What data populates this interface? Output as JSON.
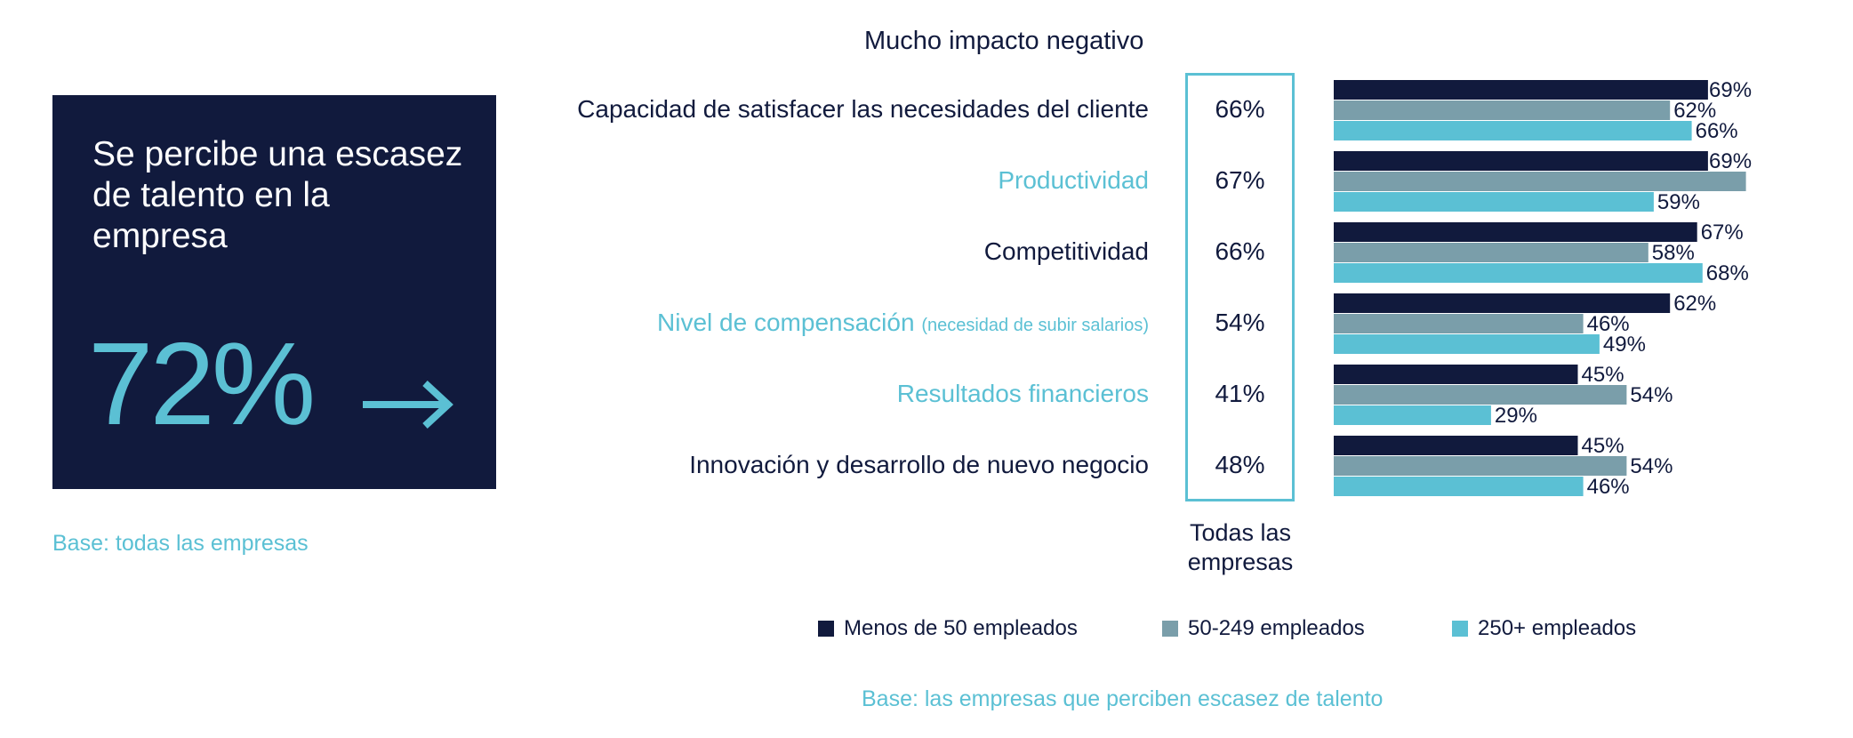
{
  "summary": {
    "title": "Se percibe una escasez de talento en la empresa",
    "value": "72%",
    "icon": "arrow-right-icon",
    "base": "Base: todas las empresas"
  },
  "colors": {
    "navy": "#111a3d",
    "grey": "#7a9eaa",
    "teal": "#5bc0d4"
  },
  "chart_data": {
    "type": "bar",
    "orientation": "horizontal",
    "title": "Mucho impacto negativo",
    "categories": [
      "Capacidad de satisfacer las necesidades del cliente",
      "Productividad",
      "Competitividad",
      "Nivel de compensación",
      "Resultados financieros",
      "Innovación y desarrollo de nuevo negocio"
    ],
    "category_notes": [
      "",
      "",
      "",
      "(necesidad de subir salarios)",
      "",
      ""
    ],
    "all_companies_label": "Todas las empresas",
    "all_companies": [
      "66%",
      "67%",
      "66%",
      "54%",
      "41%",
      "48%"
    ],
    "series": [
      {
        "name": "Menos de 50 empleados",
        "color": "#111a3d",
        "values": [
          69,
          69,
          67,
          62,
          45,
          45
        ]
      },
      {
        "name": "50-249 empleados",
        "color": "#7a9eaa",
        "values": [
          62,
          76,
          58,
          46,
          54,
          54
        ]
      },
      {
        "name": "250+ empleados",
        "color": "#5bc0d4",
        "values": [
          66,
          59,
          68,
          49,
          29,
          46
        ]
      }
    ],
    "value_labels": [
      [
        "69%",
        "69%",
        "67%",
        "62%",
        "45%",
        "45%"
      ],
      [
        "62%",
        "",
        "58%",
        "46%",
        "54%",
        "54%"
      ],
      [
        "66%",
        "59%",
        "68%",
        "49%",
        "29%",
        "46%"
      ]
    ],
    "unit": "%",
    "legend_position": "bottom",
    "base_note": "Base: las empresas que perciben escasez de talento"
  }
}
